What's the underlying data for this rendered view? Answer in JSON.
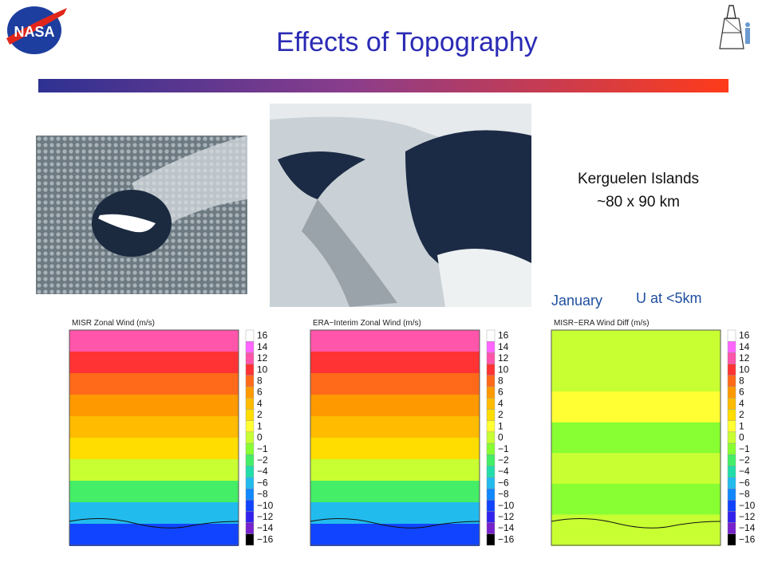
{
  "slide": {
    "title": "Effects of Topography",
    "logo_text": "NASA",
    "caption_line1": "Kerguelen Islands",
    "caption_line2": "~80 x 90 km",
    "month_label": "January",
    "wind_label": "U at <5km",
    "colors": {
      "title": "#2b2bb5",
      "rule_start": "#2e3192",
      "rule_end": "#ff3b1a",
      "label": "#1f4f9f"
    }
  },
  "images": [
    {
      "name": "kerguelen-wide-satellite-image",
      "icon": "satellite-photo"
    },
    {
      "name": "kerguelen-zoom-satellite-image",
      "icon": "satellite-photo"
    }
  ],
  "chart_data": [
    {
      "type": "heatmap",
      "title": "MISR Zonal Wind (m/s)",
      "colorbar": {
        "levels": [
          16,
          14,
          12,
          10,
          8,
          6,
          4,
          2,
          1,
          0,
          -1,
          -2,
          -4,
          -6,
          -8,
          -10,
          -12,
          -14,
          -16
        ],
        "colors": [
          "#ffffff",
          "#ff66ff",
          "#ff55aa",
          "#ff3333",
          "#ff6a1a",
          "#ff9900",
          "#ffbb00",
          "#ffdd00",
          "#ffff33",
          "#c8ff33",
          "#88ff33",
          "#44ee66",
          "#22ddaa",
          "#22bbee",
          "#1188ff",
          "#1144ff",
          "#3322ee",
          "#7722cc",
          "#000000"
        ]
      },
      "bands": [
        12,
        10,
        8,
        6,
        4,
        2,
        0,
        -2,
        -6,
        -10
      ]
    },
    {
      "type": "heatmap",
      "title": "ERA−Interim Zonal Wind (m/s)",
      "colorbar": {
        "levels": [
          16,
          14,
          12,
          10,
          8,
          6,
          4,
          2,
          1,
          0,
          -1,
          -2,
          -4,
          -6,
          -8,
          -10,
          -12,
          -14,
          -16
        ],
        "colors": [
          "#ffffff",
          "#ff66ff",
          "#ff55aa",
          "#ff3333",
          "#ff6a1a",
          "#ff9900",
          "#ffbb00",
          "#ffdd00",
          "#ffff33",
          "#c8ff33",
          "#88ff33",
          "#44ee66",
          "#22ddaa",
          "#22bbee",
          "#1188ff",
          "#1144ff",
          "#3322ee",
          "#7722cc",
          "#000000"
        ]
      },
      "bands": [
        12,
        10,
        8,
        6,
        4,
        2,
        0,
        -2,
        -6,
        -10
      ]
    },
    {
      "type": "heatmap",
      "title": "MISR−ERA Wind Diff (m/s)",
      "colorbar": {
        "levels": [
          16,
          14,
          12,
          10,
          8,
          6,
          4,
          2,
          1,
          0,
          -1,
          -2,
          -4,
          -6,
          -8,
          -10,
          -12,
          -14,
          -16
        ],
        "colors": [
          "#ffffff",
          "#ff66ff",
          "#ff55aa",
          "#ff3333",
          "#ff6a1a",
          "#ff9900",
          "#ffbb00",
          "#ffdd00",
          "#ffff33",
          "#c8ff33",
          "#88ff33",
          "#44ee66",
          "#22ddaa",
          "#22bbee",
          "#1188ff",
          "#1144ff",
          "#3322ee",
          "#7722cc",
          "#000000"
        ]
      },
      "bands": [
        0,
        0,
        1,
        -1,
        0,
        -1,
        0
      ]
    }
  ]
}
